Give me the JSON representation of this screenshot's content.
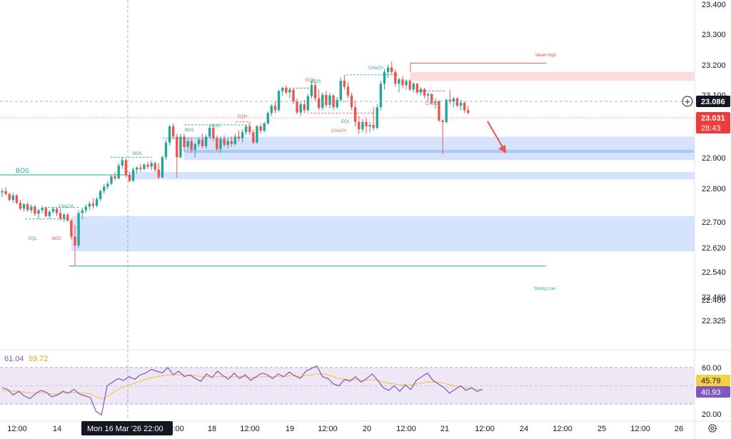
{
  "colors": {
    "up": "#26a69a",
    "down": "#ef5350",
    "demand_zone": "#c8d9fb",
    "supply_zone": "#fbd3d3",
    "rsi_line": "#7e57c2",
    "rsi_ma": "#f2c94c",
    "rsi_band": "#ede7f6",
    "price_badge": "#ef3b3b",
    "crosshair_badge": "#131722",
    "rsi_ma_badge": "#f6cf45",
    "rsi_badge": "#7e57c2"
  },
  "chart_data": {
    "type": "candlestick",
    "y_axis": {
      "range": [
        22.26,
        23.42
      ],
      "ticks": [
        "23.400",
        "23.300",
        "23.200",
        "22.900",
        "22.800",
        "22.700",
        "22.620",
        "22.540",
        "22.460",
        "22.400",
        "22.325"
      ]
    },
    "x_axis": {
      "ticks": [
        "12:00",
        "14",
        "12:00",
        "18",
        "12:00",
        "19",
        "12:00",
        "20",
        "12:00",
        "21",
        "12:00",
        "24",
        "12:00",
        "25",
        "12:00",
        "26"
      ],
      "crosshair_label": "Mon 16 Mar '26   22:00",
      "covered_tick": "22:00"
    },
    "price_labels": {
      "crosshair_price": "23.086",
      "current_price": "23.031",
      "countdown": "28:43",
      "partially_hidden": "23.100"
    },
    "candles": [
      {
        "o": 22.76,
        "h": 22.775,
        "l": 22.745,
        "c": 22.765
      },
      {
        "o": 22.765,
        "h": 22.778,
        "l": 22.75,
        "c": 22.755
      },
      {
        "o": 22.755,
        "h": 22.76,
        "l": 22.73,
        "c": 22.735
      },
      {
        "o": 22.735,
        "h": 22.76,
        "l": 22.725,
        "c": 22.75
      },
      {
        "o": 22.75,
        "h": 22.755,
        "l": 22.72,
        "c": 22.725
      },
      {
        "o": 22.725,
        "h": 22.735,
        "l": 22.7,
        "c": 22.705
      },
      {
        "o": 22.705,
        "h": 22.725,
        "l": 22.695,
        "c": 22.72
      },
      {
        "o": 22.72,
        "h": 22.728,
        "l": 22.695,
        "c": 22.7
      },
      {
        "o": 22.7,
        "h": 22.72,
        "l": 22.69,
        "c": 22.712
      },
      {
        "o": 22.712,
        "h": 22.718,
        "l": 22.68,
        "c": 22.688
      },
      {
        "o": 22.688,
        "h": 22.705,
        "l": 22.67,
        "c": 22.7
      },
      {
        "o": 22.7,
        "h": 22.715,
        "l": 22.69,
        "c": 22.708
      },
      {
        "o": 22.708,
        "h": 22.712,
        "l": 22.675,
        "c": 22.68
      },
      {
        "o": 22.68,
        "h": 22.7,
        "l": 22.67,
        "c": 22.695
      },
      {
        "o": 22.695,
        "h": 22.712,
        "l": 22.688,
        "c": 22.705
      },
      {
        "o": 22.705,
        "h": 22.71,
        "l": 22.68,
        "c": 22.69
      },
      {
        "o": 22.69,
        "h": 22.705,
        "l": 22.665,
        "c": 22.672
      },
      {
        "o": 22.672,
        "h": 22.69,
        "l": 22.66,
        "c": 22.685
      },
      {
        "o": 22.685,
        "h": 22.69,
        "l": 22.66,
        "c": 22.665
      },
      {
        "o": 22.665,
        "h": 22.67,
        "l": 22.6,
        "c": 22.61
      },
      {
        "o": 22.61,
        "h": 22.65,
        "l": 22.51,
        "c": 22.58
      },
      {
        "o": 22.58,
        "h": 22.7,
        "l": 22.57,
        "c": 22.69
      },
      {
        "o": 22.69,
        "h": 22.71,
        "l": 22.67,
        "c": 22.7
      },
      {
        "o": 22.7,
        "h": 22.72,
        "l": 22.69,
        "c": 22.712
      },
      {
        "o": 22.712,
        "h": 22.73,
        "l": 22.7,
        "c": 22.722
      },
      {
        "o": 22.722,
        "h": 22.74,
        "l": 22.705,
        "c": 22.715
      },
      {
        "o": 22.715,
        "h": 22.745,
        "l": 22.71,
        "c": 22.738
      },
      {
        "o": 22.738,
        "h": 22.77,
        "l": 22.73,
        "c": 22.765
      },
      {
        "o": 22.765,
        "h": 22.79,
        "l": 22.755,
        "c": 22.78
      },
      {
        "o": 22.78,
        "h": 22.8,
        "l": 22.77,
        "c": 22.79
      },
      {
        "o": 22.79,
        "h": 22.82,
        "l": 22.785,
        "c": 22.815
      },
      {
        "o": 22.815,
        "h": 22.83,
        "l": 22.8,
        "c": 22.808
      },
      {
        "o": 22.808,
        "h": 22.86,
        "l": 22.805,
        "c": 22.852
      },
      {
        "o": 22.852,
        "h": 22.88,
        "l": 22.84,
        "c": 22.87
      },
      {
        "o": 22.87,
        "h": 22.875,
        "l": 22.81,
        "c": 22.82
      },
      {
        "o": 22.82,
        "h": 22.83,
        "l": 22.795,
        "c": 22.8
      },
      {
        "o": 22.8,
        "h": 22.845,
        "l": 22.795,
        "c": 22.838
      },
      {
        "o": 22.838,
        "h": 22.85,
        "l": 22.825,
        "c": 22.845
      },
      {
        "o": 22.845,
        "h": 22.858,
        "l": 22.83,
        "c": 22.84
      },
      {
        "o": 22.84,
        "h": 22.86,
        "l": 22.835,
        "c": 22.855
      },
      {
        "o": 22.855,
        "h": 22.865,
        "l": 22.84,
        "c": 22.848
      },
      {
        "o": 22.848,
        "h": 22.868,
        "l": 22.835,
        "c": 22.86
      },
      {
        "o": 22.86,
        "h": 22.865,
        "l": 22.83,
        "c": 22.838
      },
      {
        "o": 22.838,
        "h": 22.86,
        "l": 22.805,
        "c": 22.812
      },
      {
        "o": 22.812,
        "h": 22.885,
        "l": 22.808,
        "c": 22.88
      },
      {
        "o": 22.88,
        "h": 22.94,
        "l": 22.87,
        "c": 22.93
      },
      {
        "o": 22.93,
        "h": 22.99,
        "l": 22.92,
        "c": 22.985
      },
      {
        "o": 22.985,
        "h": 22.995,
        "l": 22.94,
        "c": 22.95
      },
      {
        "o": 22.95,
        "h": 22.96,
        "l": 22.81,
        "c": 22.88
      },
      {
        "o": 22.88,
        "h": 22.96,
        "l": 22.875,
        "c": 22.95
      },
      {
        "o": 22.95,
        "h": 22.96,
        "l": 22.9,
        "c": 22.915
      },
      {
        "o": 22.915,
        "h": 22.945,
        "l": 22.905,
        "c": 22.935
      },
      {
        "o": 22.935,
        "h": 22.945,
        "l": 22.895,
        "c": 22.905
      },
      {
        "o": 22.905,
        "h": 22.93,
        "l": 22.88,
        "c": 22.925
      },
      {
        "o": 22.925,
        "h": 22.948,
        "l": 22.915,
        "c": 22.94
      },
      {
        "o": 22.94,
        "h": 22.96,
        "l": 22.912,
        "c": 22.918
      },
      {
        "o": 22.918,
        "h": 22.958,
        "l": 22.91,
        "c": 22.95
      },
      {
        "o": 22.95,
        "h": 22.99,
        "l": 22.945,
        "c": 22.98
      },
      {
        "o": 22.98,
        "h": 22.985,
        "l": 22.935,
        "c": 22.945
      },
      {
        "o": 22.945,
        "h": 22.955,
        "l": 22.9,
        "c": 22.908
      },
      {
        "o": 22.908,
        "h": 22.95,
        "l": 22.895,
        "c": 22.942
      },
      {
        "o": 22.942,
        "h": 22.955,
        "l": 22.915,
        "c": 22.922
      },
      {
        "o": 22.922,
        "h": 22.945,
        "l": 22.91,
        "c": 22.935
      },
      {
        "o": 22.935,
        "h": 22.95,
        "l": 22.915,
        "c": 22.925
      },
      {
        "o": 22.925,
        "h": 22.96,
        "l": 22.92,
        "c": 22.95
      },
      {
        "o": 22.95,
        "h": 22.97,
        "l": 22.935,
        "c": 22.945
      },
      {
        "o": 22.945,
        "h": 22.975,
        "l": 22.93,
        "c": 22.965
      },
      {
        "o": 22.965,
        "h": 22.99,
        "l": 22.955,
        "c": 22.985
      },
      {
        "o": 22.985,
        "h": 23.0,
        "l": 22.955,
        "c": 22.965
      },
      {
        "o": 22.965,
        "h": 22.975,
        "l": 22.925,
        "c": 22.93
      },
      {
        "o": 22.93,
        "h": 22.99,
        "l": 22.925,
        "c": 22.985
      },
      {
        "o": 22.985,
        "h": 22.995,
        "l": 22.96,
        "c": 22.97
      },
      {
        "o": 22.97,
        "h": 23.0,
        "l": 22.965,
        "c": 22.995
      },
      {
        "o": 22.995,
        "h": 23.035,
        "l": 22.99,
        "c": 23.03
      },
      {
        "o": 23.03,
        "h": 23.06,
        "l": 23.02,
        "c": 23.055
      },
      {
        "o": 23.055,
        "h": 23.07,
        "l": 23.03,
        "c": 23.04
      },
      {
        "o": 23.04,
        "h": 23.11,
        "l": 23.035,
        "c": 23.105
      },
      {
        "o": 23.105,
        "h": 23.12,
        "l": 23.09,
        "c": 23.115
      },
      {
        "o": 23.115,
        "h": 23.125,
        "l": 23.095,
        "c": 23.1
      },
      {
        "o": 23.1,
        "h": 23.115,
        "l": 23.08,
        "c": 23.11
      },
      {
        "o": 23.11,
        "h": 23.112,
        "l": 23.06,
        "c": 23.07
      },
      {
        "o": 23.07,
        "h": 23.08,
        "l": 23.025,
        "c": 23.032
      },
      {
        "o": 23.032,
        "h": 23.07,
        "l": 23.02,
        "c": 23.06
      },
      {
        "o": 23.06,
        "h": 23.075,
        "l": 23.03,
        "c": 23.04
      },
      {
        "o": 23.04,
        "h": 23.095,
        "l": 23.035,
        "c": 23.088
      },
      {
        "o": 23.088,
        "h": 23.14,
        "l": 23.08,
        "c": 23.125
      },
      {
        "o": 23.125,
        "h": 23.135,
        "l": 23.07,
        "c": 23.08
      },
      {
        "o": 23.08,
        "h": 23.11,
        "l": 23.04,
        "c": 23.048
      },
      {
        "o": 23.048,
        "h": 23.1,
        "l": 23.04,
        "c": 23.092
      },
      {
        "o": 23.092,
        "h": 23.105,
        "l": 23.05,
        "c": 23.058
      },
      {
        "o": 23.058,
        "h": 23.098,
        "l": 23.045,
        "c": 23.09
      },
      {
        "o": 23.09,
        "h": 23.095,
        "l": 23.04,
        "c": 23.05
      },
      {
        "o": 23.05,
        "h": 23.085,
        "l": 23.045,
        "c": 23.075
      },
      {
        "o": 23.075,
        "h": 23.15,
        "l": 23.07,
        "c": 23.14
      },
      {
        "o": 23.14,
        "h": 23.16,
        "l": 23.11,
        "c": 23.12
      },
      {
        "o": 23.12,
        "h": 23.135,
        "l": 23.08,
        "c": 23.09
      },
      {
        "o": 23.09,
        "h": 23.1,
        "l": 23.04,
        "c": 23.05
      },
      {
        "o": 23.05,
        "h": 23.07,
        "l": 22.985,
        "c": 23.0
      },
      {
        "o": 23.0,
        "h": 23.02,
        "l": 22.96,
        "c": 22.975
      },
      {
        "o": 22.975,
        "h": 23.01,
        "l": 22.965,
        "c": 23.0
      },
      {
        "o": 23.0,
        "h": 23.015,
        "l": 22.96,
        "c": 22.985
      },
      {
        "o": 22.985,
        "h": 23.0,
        "l": 22.965,
        "c": 22.99
      },
      {
        "o": 22.99,
        "h": 23.05,
        "l": 22.97,
        "c": 22.98
      },
      {
        "o": 22.98,
        "h": 23.06,
        "l": 22.975,
        "c": 23.05
      },
      {
        "o": 23.05,
        "h": 23.14,
        "l": 23.04,
        "c": 23.13
      },
      {
        "o": 23.13,
        "h": 23.18,
        "l": 23.11,
        "c": 23.17
      },
      {
        "o": 23.17,
        "h": 23.195,
        "l": 23.15,
        "c": 23.185
      },
      {
        "o": 23.185,
        "h": 23.205,
        "l": 23.16,
        "c": 23.17
      },
      {
        "o": 23.17,
        "h": 23.18,
        "l": 23.12,
        "c": 23.13
      },
      {
        "o": 23.13,
        "h": 23.15,
        "l": 23.1,
        "c": 23.145
      },
      {
        "o": 23.145,
        "h": 23.155,
        "l": 23.115,
        "c": 23.125
      },
      {
        "o": 23.125,
        "h": 23.145,
        "l": 23.11,
        "c": 23.14
      },
      {
        "o": 23.14,
        "h": 23.145,
        "l": 23.105,
        "c": 23.11
      },
      {
        "o": 23.11,
        "h": 23.135,
        "l": 23.1,
        "c": 23.13
      },
      {
        "o": 23.13,
        "h": 23.132,
        "l": 23.095,
        "c": 23.1
      },
      {
        "o": 23.1,
        "h": 23.118,
        "l": 23.09,
        "c": 23.112
      },
      {
        "o": 23.112,
        "h": 23.115,
        "l": 23.08,
        "c": 23.09
      },
      {
        "o": 23.09,
        "h": 23.1,
        "l": 23.07,
        "c": 23.095
      },
      {
        "o": 23.095,
        "h": 23.098,
        "l": 23.06,
        "c": 23.065
      },
      {
        "o": 23.065,
        "h": 23.08,
        "l": 23.045,
        "c": 23.07
      },
      {
        "o": 23.07,
        "h": 23.075,
        "l": 23.0,
        "c": 23.005
      },
      {
        "o": 23.005,
        "h": 23.01,
        "l": 22.89,
        "c": 23.0
      },
      {
        "o": 23.0,
        "h": 23.08,
        "l": 22.995,
        "c": 23.075
      },
      {
        "o": 23.075,
        "h": 23.11,
        "l": 23.06,
        "c": 23.07
      },
      {
        "o": 23.07,
        "h": 23.085,
        "l": 23.05,
        "c": 23.08
      },
      {
        "o": 23.08,
        "h": 23.085,
        "l": 23.05,
        "c": 23.055
      },
      {
        "o": 23.055,
        "h": 23.075,
        "l": 23.04,
        "c": 23.065
      },
      {
        "o": 23.065,
        "h": 23.07,
        "l": 23.03,
        "c": 23.04
      },
      {
        "o": 23.04,
        "h": 23.055,
        "l": 23.025,
        "c": 23.031
      }
    ],
    "zones": [
      {
        "kind": "supply",
        "top": 23.17,
        "bottom": 23.14
      },
      {
        "kind": "demand",
        "top": 22.95,
        "bottom": 22.87
      },
      {
        "kind": "demand-mid",
        "top": 22.905,
        "bottom": 22.895
      },
      {
        "kind": "demand",
        "top": 22.83,
        "bottom": 22.805
      },
      {
        "kind": "demand",
        "top": 22.68,
        "bottom": 22.56
      }
    ],
    "levels": [
      {
        "label": "Weak High",
        "price": 23.2,
        "color": "#ef5350"
      },
      {
        "label": "Strong Low",
        "price": 22.51,
        "color": "#26a69a"
      },
      {
        "label": "BOS",
        "price": 22.82,
        "color": "#26a69a"
      }
    ],
    "annotations": [
      {
        "text": "BOS",
        "color": "#26a69a",
        "large": true
      },
      {
        "text": "CHoCH",
        "color": "#26a69a"
      },
      {
        "text": "EQL",
        "color": "#26a69a"
      },
      {
        "text": "BOS",
        "color": "#ef5350"
      },
      {
        "text": "BOS",
        "color": "#26a69a"
      },
      {
        "text": "BOS",
        "color": "#26a69a"
      },
      {
        "text": "BOS",
        "color": "#26a69a"
      },
      {
        "text": "EQH",
        "color": "#ef5350"
      },
      {
        "text": "EQH",
        "color": "#ef5350"
      },
      {
        "text": "BOS",
        "color": "#26a69a"
      },
      {
        "text": "CHoCH",
        "color": "#26a69a"
      },
      {
        "text": "EQL",
        "color": "#26a69a"
      },
      {
        "text": "CHoCH",
        "color": "#ef5350"
      },
      {
        "text": "CHoCH",
        "color": "#ef5350"
      },
      {
        "text": "Weak High",
        "color": "#ef5350"
      },
      {
        "text": "Strong Low",
        "color": "#26a69a"
      }
    ],
    "rsi": {
      "values_header": [
        "61.04",
        "59.72"
      ],
      "ticks": [
        "60.00",
        "20.00"
      ],
      "badges": {
        "ma": "45.79",
        "rsi": "40.93"
      },
      "range": [
        16,
        84
      ],
      "band": [
        30,
        70
      ],
      "rsi_values": [
        48,
        46,
        40,
        44,
        39,
        36,
        41,
        45,
        43,
        38,
        40,
        44,
        42,
        46,
        41,
        39,
        37,
        22,
        18,
        50,
        54,
        58,
        56,
        60,
        57,
        62,
        64,
        68,
        66,
        64,
        70,
        62,
        66,
        60,
        62,
        58,
        55,
        63,
        59,
        66,
        61,
        57,
        64,
        58,
        62,
        56,
        60,
        64,
        62,
        58,
        63,
        60,
        65,
        61,
        58,
        66,
        69,
        72,
        60,
        58,
        52,
        50,
        57,
        55,
        60,
        54,
        58,
        63,
        56,
        48,
        45,
        50,
        44,
        51,
        46,
        56,
        60,
        64,
        56,
        52,
        48,
        42,
        46,
        50,
        45,
        48,
        44,
        46
      ],
      "ma_values": [
        45,
        45,
        44,
        44,
        43,
        42,
        42,
        42,
        42,
        41,
        41,
        42,
        42,
        43,
        42,
        42,
        41,
        38,
        36,
        38,
        42,
        46,
        49,
        51,
        53,
        55,
        57,
        59,
        60,
        61,
        62,
        62,
        62,
        62,
        61,
        61,
        60,
        60,
        60,
        60,
        60,
        60,
        60,
        60,
        60,
        59,
        59,
        60,
        60,
        60,
        60,
        60,
        61,
        61,
        60,
        61,
        62,
        63,
        63,
        62,
        60,
        58,
        57,
        57,
        57,
        56,
        56,
        57,
        56,
        54,
        53,
        52,
        51,
        51,
        51,
        52,
        53,
        54,
        54,
        54,
        53,
        51,
        50,
        49,
        48,
        47,
        46,
        46
      ]
    }
  }
}
